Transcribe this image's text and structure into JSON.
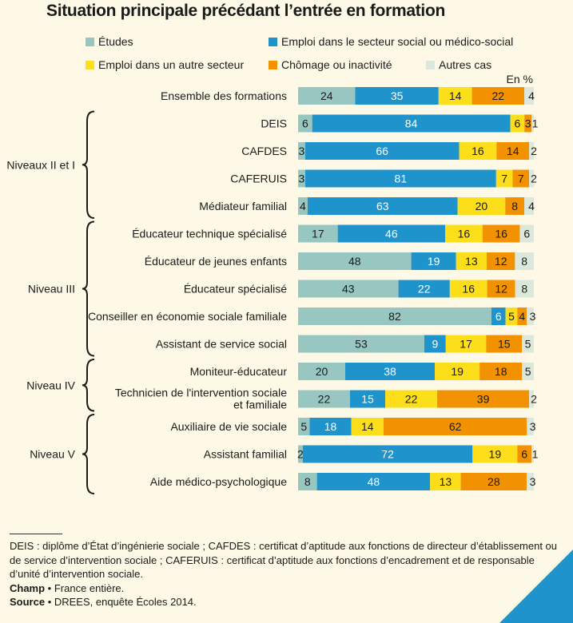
{
  "chart_data": {
    "type": "bar",
    "orientation": "horizontal",
    "stacked": true,
    "title": "Situation principale précédant l’entrée en formation",
    "unit_label": "En %",
    "series": [
      {
        "name": "Études",
        "color": "#98c6c1"
      },
      {
        "name": "Emploi dans le secteur social ou médico-social",
        "color": "#1f93cc"
      },
      {
        "name": "Emploi dans un autre secteur",
        "color": "#fdde1a"
      },
      {
        "name": "Chômage ou inactivité",
        "color": "#f39200"
      },
      {
        "name": "Autres cas",
        "color": "#dde8dc"
      }
    ],
    "categories": [
      {
        "label": [
          "Ensemble des formations"
        ],
        "values": [
          24,
          35,
          14,
          22,
          4
        ]
      },
      {
        "label": [
          "DEIS"
        ],
        "values": [
          6,
          84,
          6,
          3,
          1
        ]
      },
      {
        "label": [
          "CAFDES"
        ],
        "values": [
          3,
          66,
          16,
          14,
          2
        ]
      },
      {
        "label": [
          "CAFERUIS"
        ],
        "values": [
          3,
          81,
          7,
          7,
          2
        ]
      },
      {
        "label": [
          "Médiateur familial"
        ],
        "values": [
          4,
          63,
          20,
          8,
          4
        ]
      },
      {
        "label": [
          "Éducateur technique spécialisé"
        ],
        "values": [
          17,
          46,
          16,
          16,
          6
        ]
      },
      {
        "label": [
          "Éducateur de jeunes enfants"
        ],
        "values": [
          48,
          19,
          13,
          12,
          8
        ]
      },
      {
        "label": [
          "Éducateur spécialisé"
        ],
        "values": [
          43,
          22,
          16,
          12,
          8
        ]
      },
      {
        "label": [
          "Conseiller en économie sociale familiale"
        ],
        "values": [
          82,
          6,
          5,
          4,
          3
        ]
      },
      {
        "label": [
          "Assistant de service social"
        ],
        "values": [
          53,
          9,
          17,
          15,
          5
        ]
      },
      {
        "label": [
          "Moniteur-éducateur"
        ],
        "values": [
          20,
          38,
          19,
          18,
          5
        ]
      },
      {
        "label": [
          "Technicien de l'intervention sociale",
          "et familiale"
        ],
        "values": [
          22,
          15,
          22,
          39,
          2
        ]
      },
      {
        "label": [
          "Auxiliaire de vie sociale"
        ],
        "values": [
          5,
          18,
          14,
          62,
          3
        ]
      },
      {
        "label": [
          "Assistant familial"
        ],
        "values": [
          2,
          72,
          19,
          6,
          1
        ]
      },
      {
        "label": [
          "Aide médico-psychologique"
        ],
        "values": [
          8,
          48,
          13,
          28,
          3
        ]
      }
    ],
    "groups": [
      {
        "label": "Niveaux II et I",
        "from": 1,
        "to": 4
      },
      {
        "label": "Niveau III",
        "from": 5,
        "to": 9
      },
      {
        "label": "Niveau IV",
        "from": 10,
        "to": 11
      },
      {
        "label": "Niveau V",
        "from": 12,
        "to": 14
      }
    ],
    "xlim": [
      0,
      100
    ]
  },
  "footer": {
    "definitions": "DEIS : diplôme d’État d’ingénierie sociale ; CAFDES : certificat d’aptitude aux fonctions de directeur d’établissement ou de service d’intervention sociale ; CAFERUIS : certificat d’aptitude aux fonctions d’encadrement et de responsable d’unité d’intervention sociale.",
    "champ_label": "Champ",
    "champ_text": "France entière.",
    "source_label": "Source",
    "source_text": "DREES, enquête Écoles 2014."
  }
}
